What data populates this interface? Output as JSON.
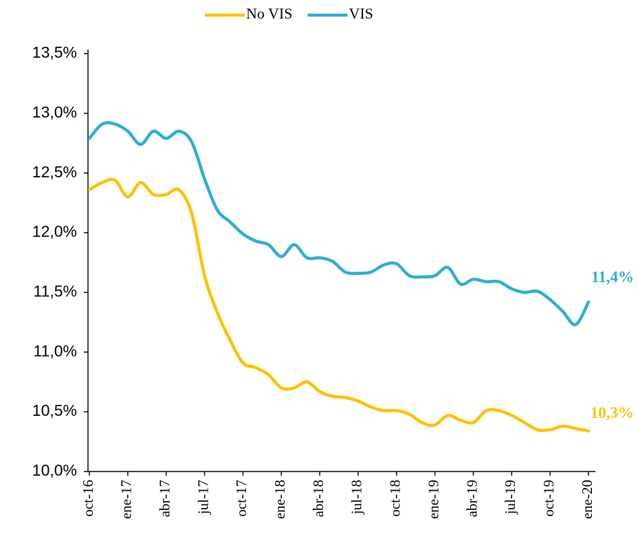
{
  "chart_data": {
    "type": "line",
    "categories": [
      "oct-16",
      null,
      null,
      "ene-17",
      null,
      null,
      "abr-17",
      null,
      null,
      "jul-17",
      null,
      null,
      "oct-17",
      null,
      null,
      "ene-18",
      null,
      null,
      "abr-18",
      null,
      null,
      "jul-18",
      null,
      null,
      "oct-18",
      null,
      null,
      "ene-19",
      null,
      null,
      "abr-19",
      null,
      null,
      "jul-19",
      null,
      null,
      "oct-19",
      null,
      null,
      "ene-20"
    ],
    "series": [
      {
        "name": "No VIS",
        "color": "#FFC000",
        "values": [
          12.36,
          12.42,
          12.44,
          12.3,
          12.42,
          12.32,
          12.32,
          12.36,
          12.16,
          11.64,
          11.33,
          11.1,
          10.91,
          10.87,
          10.81,
          10.7,
          10.7,
          10.75,
          10.67,
          10.63,
          10.62,
          10.59,
          10.54,
          10.51,
          10.51,
          10.48,
          10.41,
          10.39,
          10.47,
          10.43,
          10.41,
          10.51,
          10.51,
          10.47,
          10.41,
          10.35,
          10.35,
          10.38,
          10.36,
          10.34
        ],
        "value_labels": [
          null,
          null,
          null,
          null,
          null,
          null,
          null,
          null,
          null,
          null,
          null,
          null,
          null,
          null,
          null,
          null,
          null,
          null,
          null,
          null,
          null,
          null,
          null,
          null,
          null,
          null,
          null,
          null,
          null,
          null,
          null,
          null,
          null,
          null,
          null,
          null,
          null,
          null,
          null,
          "10,3%"
        ]
      },
      {
        "name": "VIS",
        "color": "#2DAED2",
        "values": [
          12.79,
          12.91,
          12.91,
          12.85,
          12.74,
          12.85,
          12.79,
          12.85,
          12.76,
          12.45,
          12.19,
          12.09,
          11.99,
          11.93,
          11.9,
          11.8,
          11.9,
          11.79,
          11.79,
          11.76,
          11.67,
          11.66,
          11.67,
          11.73,
          11.74,
          11.64,
          11.63,
          11.64,
          11.71,
          11.57,
          11.61,
          11.59,
          11.59,
          11.53,
          11.5,
          11.51,
          11.44,
          11.34,
          11.23,
          11.42
        ],
        "value_labels": [
          null,
          null,
          null,
          null,
          null,
          null,
          null,
          null,
          null,
          null,
          null,
          null,
          null,
          null,
          null,
          null,
          null,
          null,
          null,
          null,
          null,
          null,
          null,
          null,
          null,
          null,
          null,
          null,
          null,
          null,
          null,
          null,
          null,
          null,
          null,
          null,
          null,
          null,
          null,
          "11,4%"
        ]
      }
    ],
    "ylim": [
      10.0,
      13.5
    ],
    "yticks": [
      {
        "value": 10.0,
        "label": "10,0%"
      },
      {
        "value": 10.5,
        "label": "10,5%"
      },
      {
        "value": 11.0,
        "label": "11,0%"
      },
      {
        "value": 11.5,
        "label": "11,5%"
      },
      {
        "value": 12.0,
        "label": "12,0%"
      },
      {
        "value": 12.5,
        "label": "12,5%"
      },
      {
        "value": 13.0,
        "label": "13,0%"
      },
      {
        "value": 13.5,
        "label": "13,5%"
      }
    ],
    "legend": "top"
  }
}
